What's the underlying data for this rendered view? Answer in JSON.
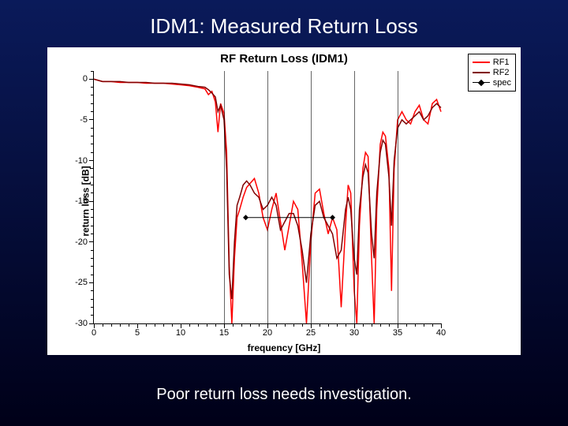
{
  "slide": {
    "title": "IDM1: Measured Return Loss",
    "caption": "Poor return loss needs investigation.",
    "background_gradient": [
      "#0a1a5a",
      "#000018"
    ]
  },
  "chart": {
    "type": "line",
    "title": "RF Return Loss (IDM1)",
    "xlabel": "frequency [GHz]",
    "ylabel": "return loss [dB]",
    "xlim": [
      0,
      40
    ],
    "ylim": [
      -30,
      1
    ],
    "xticks": [
      0,
      5,
      10,
      15,
      20,
      25,
      30,
      35,
      40
    ],
    "yticks": [
      0,
      -5,
      -10,
      -15,
      -20,
      -25,
      -30
    ],
    "xminor_step": 1,
    "yminor_step": 1,
    "grid_vertical_at": [
      15,
      20,
      25,
      30,
      35
    ],
    "axis_color": "#000000",
    "background_color": "#ffffff",
    "label_fontsize": 12,
    "tick_fontsize": 11,
    "title_fontsize": 15,
    "series": [
      {
        "name": "RF1",
        "color": "#ff0000",
        "line_width": 1.5,
        "swatch_style": "background:#ff0000;height:2px",
        "points": [
          [
            0.0,
            0.0
          ],
          [
            1,
            -0.3
          ],
          [
            2,
            -0.3
          ],
          [
            3,
            -0.4
          ],
          [
            4,
            -0.4
          ],
          [
            5,
            -0.4
          ],
          [
            6,
            -0.5
          ],
          [
            7,
            -0.5
          ],
          [
            8,
            -0.5
          ],
          [
            9,
            -0.6
          ],
          [
            10,
            -0.7
          ],
          [
            11,
            -0.8
          ],
          [
            12,
            -1.0
          ],
          [
            12.8,
            -1.2
          ],
          [
            13.2,
            -1.9
          ],
          [
            13.6,
            -1.5
          ],
          [
            14.0,
            -2.8
          ],
          [
            14.3,
            -6.5
          ],
          [
            14.6,
            -3.0
          ],
          [
            15.0,
            -4.2
          ],
          [
            15.3,
            -9.0
          ],
          [
            15.6,
            -23.0
          ],
          [
            15.9,
            -30.0
          ],
          [
            16.2,
            -22.0
          ],
          [
            16.5,
            -17.0
          ],
          [
            16.8,
            -16.0
          ],
          [
            17.2,
            -14.5
          ],
          [
            17.6,
            -13.3
          ],
          [
            18.0,
            -12.8
          ],
          [
            18.5,
            -12.2
          ],
          [
            19.0,
            -14.0
          ],
          [
            19.5,
            -17.0
          ],
          [
            20.0,
            -18.5
          ],
          [
            20.5,
            -16.0
          ],
          [
            21.0,
            -14.0
          ],
          [
            21.5,
            -17.5
          ],
          [
            22.0,
            -21.0
          ],
          [
            22.5,
            -18.0
          ],
          [
            23.0,
            -15.0
          ],
          [
            23.5,
            -16.0
          ],
          [
            24.0,
            -22.5
          ],
          [
            24.5,
            -30.0
          ],
          [
            25.0,
            -20.0
          ],
          [
            25.5,
            -14.0
          ],
          [
            26.0,
            -13.5
          ],
          [
            26.5,
            -16.5
          ],
          [
            27.0,
            -19.0
          ],
          [
            27.5,
            -17.0
          ],
          [
            28.0,
            -18.5
          ],
          [
            28.5,
            -28.0
          ],
          [
            29.0,
            -18.0
          ],
          [
            29.3,
            -13.0
          ],
          [
            29.6,
            -14.0
          ],
          [
            30.0,
            -26.0
          ],
          [
            30.3,
            -30.0
          ],
          [
            30.6,
            -18.0
          ],
          [
            31.0,
            -11.0
          ],
          [
            31.3,
            -9.0
          ],
          [
            31.6,
            -9.5
          ],
          [
            32.0,
            -22.0
          ],
          [
            32.3,
            -30.0
          ],
          [
            32.6,
            -16.0
          ],
          [
            33.0,
            -8.0
          ],
          [
            33.3,
            -6.5
          ],
          [
            33.6,
            -7.0
          ],
          [
            34.0,
            -11.0
          ],
          [
            34.3,
            -26.0
          ],
          [
            34.6,
            -11.0
          ],
          [
            35.0,
            -5.0
          ],
          [
            35.5,
            -4.0
          ],
          [
            36.0,
            -5.0
          ],
          [
            36.5,
            -5.5
          ],
          [
            37.0,
            -4.0
          ],
          [
            37.5,
            -3.2
          ],
          [
            38.0,
            -5.0
          ],
          [
            38.5,
            -5.5
          ],
          [
            39.0,
            -3.0
          ],
          [
            39.5,
            -2.5
          ],
          [
            40.0,
            -4.0
          ]
        ]
      },
      {
        "name": "RF2",
        "color": "#800000",
        "line_width": 1.5,
        "swatch_style": "background:#800000;height:2px",
        "points": [
          [
            0.0,
            0.0
          ],
          [
            1,
            -0.3
          ],
          [
            2,
            -0.3
          ],
          [
            3,
            -0.3
          ],
          [
            4,
            -0.4
          ],
          [
            5,
            -0.4
          ],
          [
            6,
            -0.4
          ],
          [
            7,
            -0.5
          ],
          [
            8,
            -0.5
          ],
          [
            9,
            -0.5
          ],
          [
            10,
            -0.6
          ],
          [
            11,
            -0.7
          ],
          [
            12,
            -0.9
          ],
          [
            12.8,
            -1.0
          ],
          [
            13.2,
            -1.3
          ],
          [
            13.6,
            -1.7
          ],
          [
            14.0,
            -2.2
          ],
          [
            14.3,
            -4.0
          ],
          [
            14.6,
            -3.2
          ],
          [
            15.0,
            -5.0
          ],
          [
            15.3,
            -11.0
          ],
          [
            15.6,
            -24.0
          ],
          [
            15.9,
            -27.0
          ],
          [
            16.2,
            -20.0
          ],
          [
            16.5,
            -15.5
          ],
          [
            16.8,
            -14.5
          ],
          [
            17.2,
            -13.0
          ],
          [
            17.6,
            -12.5
          ],
          [
            18.0,
            -13.0
          ],
          [
            18.5,
            -14.0
          ],
          [
            19.0,
            -14.5
          ],
          [
            19.5,
            -16.0
          ],
          [
            20.0,
            -15.5
          ],
          [
            20.5,
            -14.5
          ],
          [
            21.0,
            -15.5
          ],
          [
            21.5,
            -18.5
          ],
          [
            22.0,
            -17.5
          ],
          [
            22.5,
            -16.5
          ],
          [
            23.0,
            -16.5
          ],
          [
            23.5,
            -18.0
          ],
          [
            24.0,
            -21.0
          ],
          [
            24.5,
            -25.0
          ],
          [
            25.0,
            -19.0
          ],
          [
            25.5,
            -15.5
          ],
          [
            26.0,
            -15.0
          ],
          [
            26.5,
            -17.0
          ],
          [
            27.0,
            -18.0
          ],
          [
            27.5,
            -19.0
          ],
          [
            28.0,
            -22.0
          ],
          [
            28.5,
            -21.0
          ],
          [
            29.0,
            -16.0
          ],
          [
            29.3,
            -14.5
          ],
          [
            29.6,
            -16.0
          ],
          [
            30.0,
            -22.0
          ],
          [
            30.3,
            -24.0
          ],
          [
            30.6,
            -16.0
          ],
          [
            31.0,
            -12.0
          ],
          [
            31.3,
            -10.5
          ],
          [
            31.6,
            -11.5
          ],
          [
            32.0,
            -19.0
          ],
          [
            32.3,
            -22.0
          ],
          [
            32.6,
            -14.0
          ],
          [
            33.0,
            -9.0
          ],
          [
            33.3,
            -7.5
          ],
          [
            33.6,
            -8.0
          ],
          [
            34.0,
            -12.0
          ],
          [
            34.3,
            -18.0
          ],
          [
            34.6,
            -10.0
          ],
          [
            35.0,
            -6.0
          ],
          [
            35.5,
            -5.0
          ],
          [
            36.0,
            -5.5
          ],
          [
            36.5,
            -5.0
          ],
          [
            37.0,
            -4.5
          ],
          [
            37.5,
            -4.0
          ],
          [
            38.0,
            -5.0
          ],
          [
            38.5,
            -4.5
          ],
          [
            39.0,
            -3.5
          ],
          [
            39.5,
            -3.0
          ],
          [
            40.0,
            -3.5
          ]
        ]
      }
    ],
    "spec": {
      "name": "spec",
      "color": "#000000",
      "marker": "diamond",
      "points": [
        [
          17.5,
          -17
        ],
        [
          27.5,
          -17
        ]
      ]
    }
  }
}
